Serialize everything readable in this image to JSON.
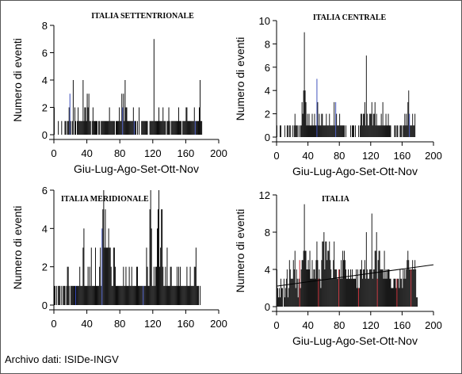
{
  "credit": "Archivo dati: ISIDe-INGV",
  "chart_data": [
    {
      "type": "bar",
      "title": "ITALIA SETTENTRIONALE",
      "xlabel": "Giu-Lug-Ago-Set-Ott-Nov",
      "ylabel": "Numero di eventi",
      "xlim": [
        0,
        200
      ],
      "ylim": [
        0,
        8
      ],
      "xticks": [
        0,
        40,
        80,
        120,
        160,
        200
      ],
      "yticks": [
        0,
        2,
        4,
        6,
        8
      ],
      "values": [
        2,
        0,
        0,
        0,
        0,
        1,
        0,
        0,
        0,
        1,
        0,
        0,
        0,
        1,
        1,
        0,
        1,
        1,
        2,
        3,
        1,
        0,
        1,
        4,
        0,
        2,
        1,
        0,
        1,
        2,
        1,
        1,
        1,
        1,
        1,
        4,
        1,
        2,
        2,
        1,
        3,
        2,
        3,
        1,
        1,
        0,
        1,
        2,
        1,
        1,
        1,
        1,
        1,
        0,
        1,
        1,
        0,
        1,
        1,
        1,
        1,
        1,
        1,
        1,
        1,
        1,
        1,
        2,
        1,
        1,
        1,
        1,
        1,
        1,
        0,
        1,
        1,
        1,
        1,
        2,
        1,
        1,
        3,
        2,
        3,
        1,
        4,
        2,
        2,
        1,
        1,
        1,
        1,
        1,
        1,
        1,
        2,
        1,
        1,
        1,
        0,
        1,
        0,
        2,
        0,
        0,
        1,
        1,
        1,
        1,
        1,
        1,
        1,
        1,
        0,
        0,
        1,
        1,
        1,
        1,
        1,
        7,
        1,
        1,
        1,
        1,
        1,
        2,
        1,
        1,
        1,
        1,
        2,
        1,
        1,
        1,
        0,
        1,
        1,
        2,
        1,
        0,
        1,
        1,
        1,
        1,
        1,
        1,
        1,
        1,
        1,
        2,
        1,
        1,
        1,
        0,
        1,
        1,
        1,
        1,
        2,
        2,
        1,
        1,
        1,
        1,
        1,
        1,
        1,
        1,
        2,
        1,
        1,
        1,
        1,
        1,
        2,
        4,
        1,
        1
      ]
    },
    {
      "type": "bar",
      "title": "ITALIA CENTRALE",
      "xlabel": "Giu-Lug-Ago-Set-Ott-Nov",
      "ylabel": "Numero di eventi",
      "xlim": [
        0,
        200
      ],
      "ylim": [
        0,
        10
      ],
      "xticks": [
        0,
        40,
        80,
        120,
        160,
        200
      ],
      "yticks": [
        0,
        2,
        4,
        6,
        8,
        10
      ],
      "values": [
        1,
        0,
        0,
        0,
        1,
        1,
        0,
        0,
        0,
        0,
        1,
        0,
        0,
        1,
        1,
        0,
        1,
        1,
        0,
        0,
        1,
        0,
        1,
        2,
        1,
        1,
        1,
        0,
        1,
        0,
        1,
        1,
        3,
        2,
        4,
        9,
        4,
        3,
        1,
        2,
        1,
        2,
        1,
        1,
        1,
        2,
        1,
        1,
        2,
        1,
        1,
        5,
        3,
        1,
        2,
        1,
        1,
        2,
        2,
        1,
        1,
        1,
        1,
        2,
        1,
        1,
        1,
        2,
        1,
        1,
        1,
        1,
        1,
        3,
        1,
        3,
        2,
        1,
        1,
        1,
        2,
        1,
        1,
        1,
        1,
        1,
        1,
        0,
        1,
        0,
        0,
        0,
        0,
        0,
        1,
        0,
        1,
        1,
        1,
        0,
        1,
        0,
        0,
        0,
        1,
        0,
        1,
        2,
        2,
        1,
        2,
        2,
        3,
        1,
        7,
        2,
        1,
        1,
        2,
        2,
        2,
        3,
        1,
        2,
        2,
        3,
        1,
        2,
        1,
        1,
        1,
        1,
        1,
        2,
        1,
        3,
        1,
        1,
        1,
        2,
        1,
        1,
        2,
        1,
        1,
        1,
        0,
        0,
        0,
        0,
        1,
        1,
        0,
        1,
        1,
        0,
        0,
        1,
        1,
        1,
        0,
        1,
        1,
        2,
        1,
        2,
        1,
        3,
        4,
        2,
        1,
        1,
        1,
        2,
        1,
        1,
        2,
        0,
        0,
        0
      ]
    },
    {
      "type": "bar",
      "title": "ITALIA MERIDIONALE",
      "xlabel": "",
      "ylabel": "Numero di eventi",
      "xlim": [
        0,
        200
      ],
      "ylim": [
        0,
        6
      ],
      "xticks": [
        0,
        40,
        80,
        120,
        160,
        200
      ],
      "yticks": [
        0,
        2,
        4,
        6
      ],
      "values": [
        1,
        1,
        0,
        1,
        0,
        1,
        1,
        1,
        0,
        1,
        0,
        1,
        1,
        1,
        0,
        1,
        2,
        2,
        1,
        0,
        1,
        1,
        1,
        1,
        1,
        1,
        1,
        1,
        1,
        1,
        1,
        2,
        1,
        1,
        1,
        3,
        4,
        1,
        1,
        1,
        1,
        2,
        1,
        2,
        1,
        3,
        1,
        1,
        1,
        1,
        3,
        1,
        1,
        1,
        1,
        2,
        3,
        1,
        4,
        5,
        6,
        3,
        5,
        3,
        3,
        3,
        4,
        3,
        3,
        2,
        1,
        1,
        3,
        3,
        2,
        1,
        1,
        1,
        1,
        1,
        1,
        1,
        1,
        1,
        2,
        1,
        1,
        2,
        1,
        1,
        1,
        2,
        1,
        1,
        2,
        1,
        1,
        1,
        1,
        1,
        2,
        2,
        1,
        1,
        1,
        1,
        1,
        1,
        1,
        1,
        1,
        1,
        3,
        2,
        1,
        1,
        5,
        6,
        4,
        1,
        1,
        2,
        1,
        2,
        2,
        4,
        5,
        6,
        2,
        3,
        5,
        5,
        2,
        1,
        1,
        2,
        1,
        3,
        1,
        1,
        1,
        2,
        2,
        1,
        1,
        1,
        1,
        1,
        1,
        2,
        1,
        2,
        1,
        2,
        1,
        1,
        1,
        1,
        1,
        1,
        1,
        2,
        1,
        1,
        1,
        2,
        1,
        1,
        1,
        1,
        2,
        2,
        3,
        1,
        1,
        1,
        0,
        1,
        0,
        0
      ]
    },
    {
      "type": "bar",
      "title": "ITALIA",
      "xlabel": "Giu-Lug-Ago-Set-Ott-Nov",
      "ylabel": "Numero di eventi",
      "xlim": [
        0,
        200
      ],
      "ylim": [
        0,
        12
      ],
      "xticks": [
        0,
        40,
        80,
        120,
        160,
        200
      ],
      "yticks": [
        0,
        4,
        8,
        12
      ],
      "trendline": [
        [
          0,
          2.2
        ],
        [
          200,
          4.5
        ]
      ],
      "values": [
        4,
        2,
        1,
        2,
        1,
        3,
        2,
        2,
        0,
        3,
        1,
        2,
        3,
        4,
        1,
        2,
        5,
        4,
        3,
        3,
        3,
        5,
        4,
        6,
        2,
        4,
        3,
        1,
        3,
        5,
        2,
        4,
        5,
        5,
        6,
        11,
        6,
        6,
        4,
        4,
        5,
        4,
        6,
        3,
        3,
        5,
        3,
        4,
        4,
        3,
        5,
        7,
        5,
        3,
        4,
        3,
        2,
        5,
        7,
        7,
        8,
        4,
        7,
        7,
        5,
        6,
        6,
        7,
        5,
        4,
        3,
        3,
        5,
        7,
        4,
        4,
        4,
        3,
        3,
        4,
        4,
        3,
        5,
        3,
        6,
        5,
        6,
        5,
        4,
        3,
        3,
        4,
        3,
        3,
        4,
        3,
        4,
        3,
        3,
        3,
        3,
        4,
        2,
        4,
        2,
        2,
        4,
        4,
        5,
        3,
        4,
        4,
        5,
        3,
        8,
        4,
        3,
        3,
        4,
        4,
        4,
        10,
        3,
        4,
        4,
        6,
        6,
        8,
        3,
        5,
        6,
        6,
        4,
        4,
        4,
        4,
        3,
        6,
        3,
        4,
        3,
        4,
        4,
        4,
        3,
        3,
        2,
        2,
        2,
        3,
        3,
        3,
        2,
        3,
        3,
        3,
        2,
        4,
        3,
        3,
        2,
        4,
        3,
        4,
        3,
        4,
        5,
        6,
        5,
        4,
        4,
        4,
        4,
        5,
        4,
        4,
        5,
        4,
        1,
        1
      ]
    }
  ]
}
